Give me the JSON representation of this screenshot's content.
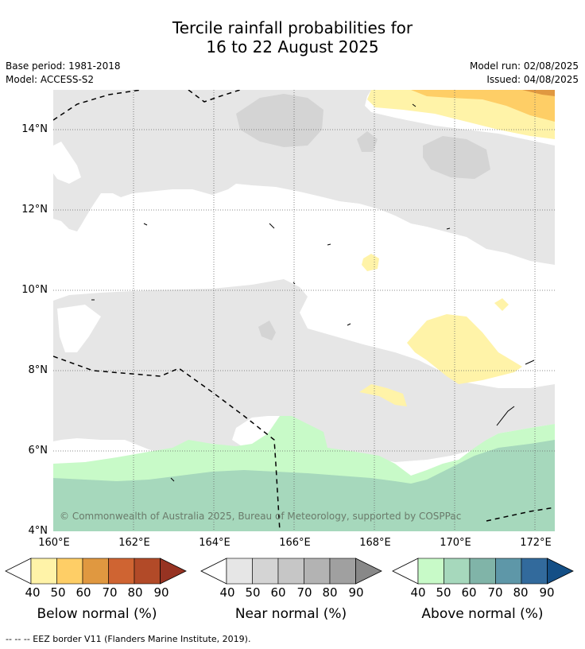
{
  "title": {
    "line1": "Tercile rainfall probabilities for",
    "line2": "16 to 22 August 2025"
  },
  "meta": {
    "base_period": "Base period: 1981-2018",
    "model": "Model: ACCESS-S2",
    "model_run": "Model run: 02/08/2025",
    "issued": "Issued: 04/08/2025"
  },
  "map": {
    "lat_labels": [
      "14°N",
      "12°N",
      "10°N",
      "8°N",
      "6°N",
      "4°N"
    ],
    "lon_labels": [
      "160°E",
      "162°E",
      "164°E",
      "166°E",
      "168°E",
      "170°E",
      "172°E"
    ],
    "copyright": "© Commonwealth of Australia 2025, Bureau of Meteorology, supported by COSPPac"
  },
  "colorbars": [
    {
      "title": "Below normal (%)",
      "ticks": [
        "40",
        "50",
        "60",
        "70",
        "80",
        "90"
      ],
      "colors": [
        "#fff3a8",
        "#fece66",
        "#e09840",
        "#cf6432",
        "#b24a28",
        "#973322"
      ]
    },
    {
      "title": "Near normal (%)",
      "ticks": [
        "40",
        "50",
        "60",
        "70",
        "80",
        "90"
      ],
      "colors": [
        "#e6e6e6",
        "#d4d4d4",
        "#c6c6c6",
        "#b3b3b3",
        "#a0a0a0",
        "#888888"
      ]
    },
    {
      "title": "Above normal (%)",
      "ticks": [
        "40",
        "50",
        "60",
        "70",
        "80",
        "90"
      ],
      "colors": [
        "#c8fac8",
        "#a6d8bc",
        "#80b4a8",
        "#5e97a8",
        "#326a9c",
        "#144f86"
      ]
    }
  ],
  "footer": "--  --  -- EEZ border V11 (Flanders Marine Institute, 2019)."
}
